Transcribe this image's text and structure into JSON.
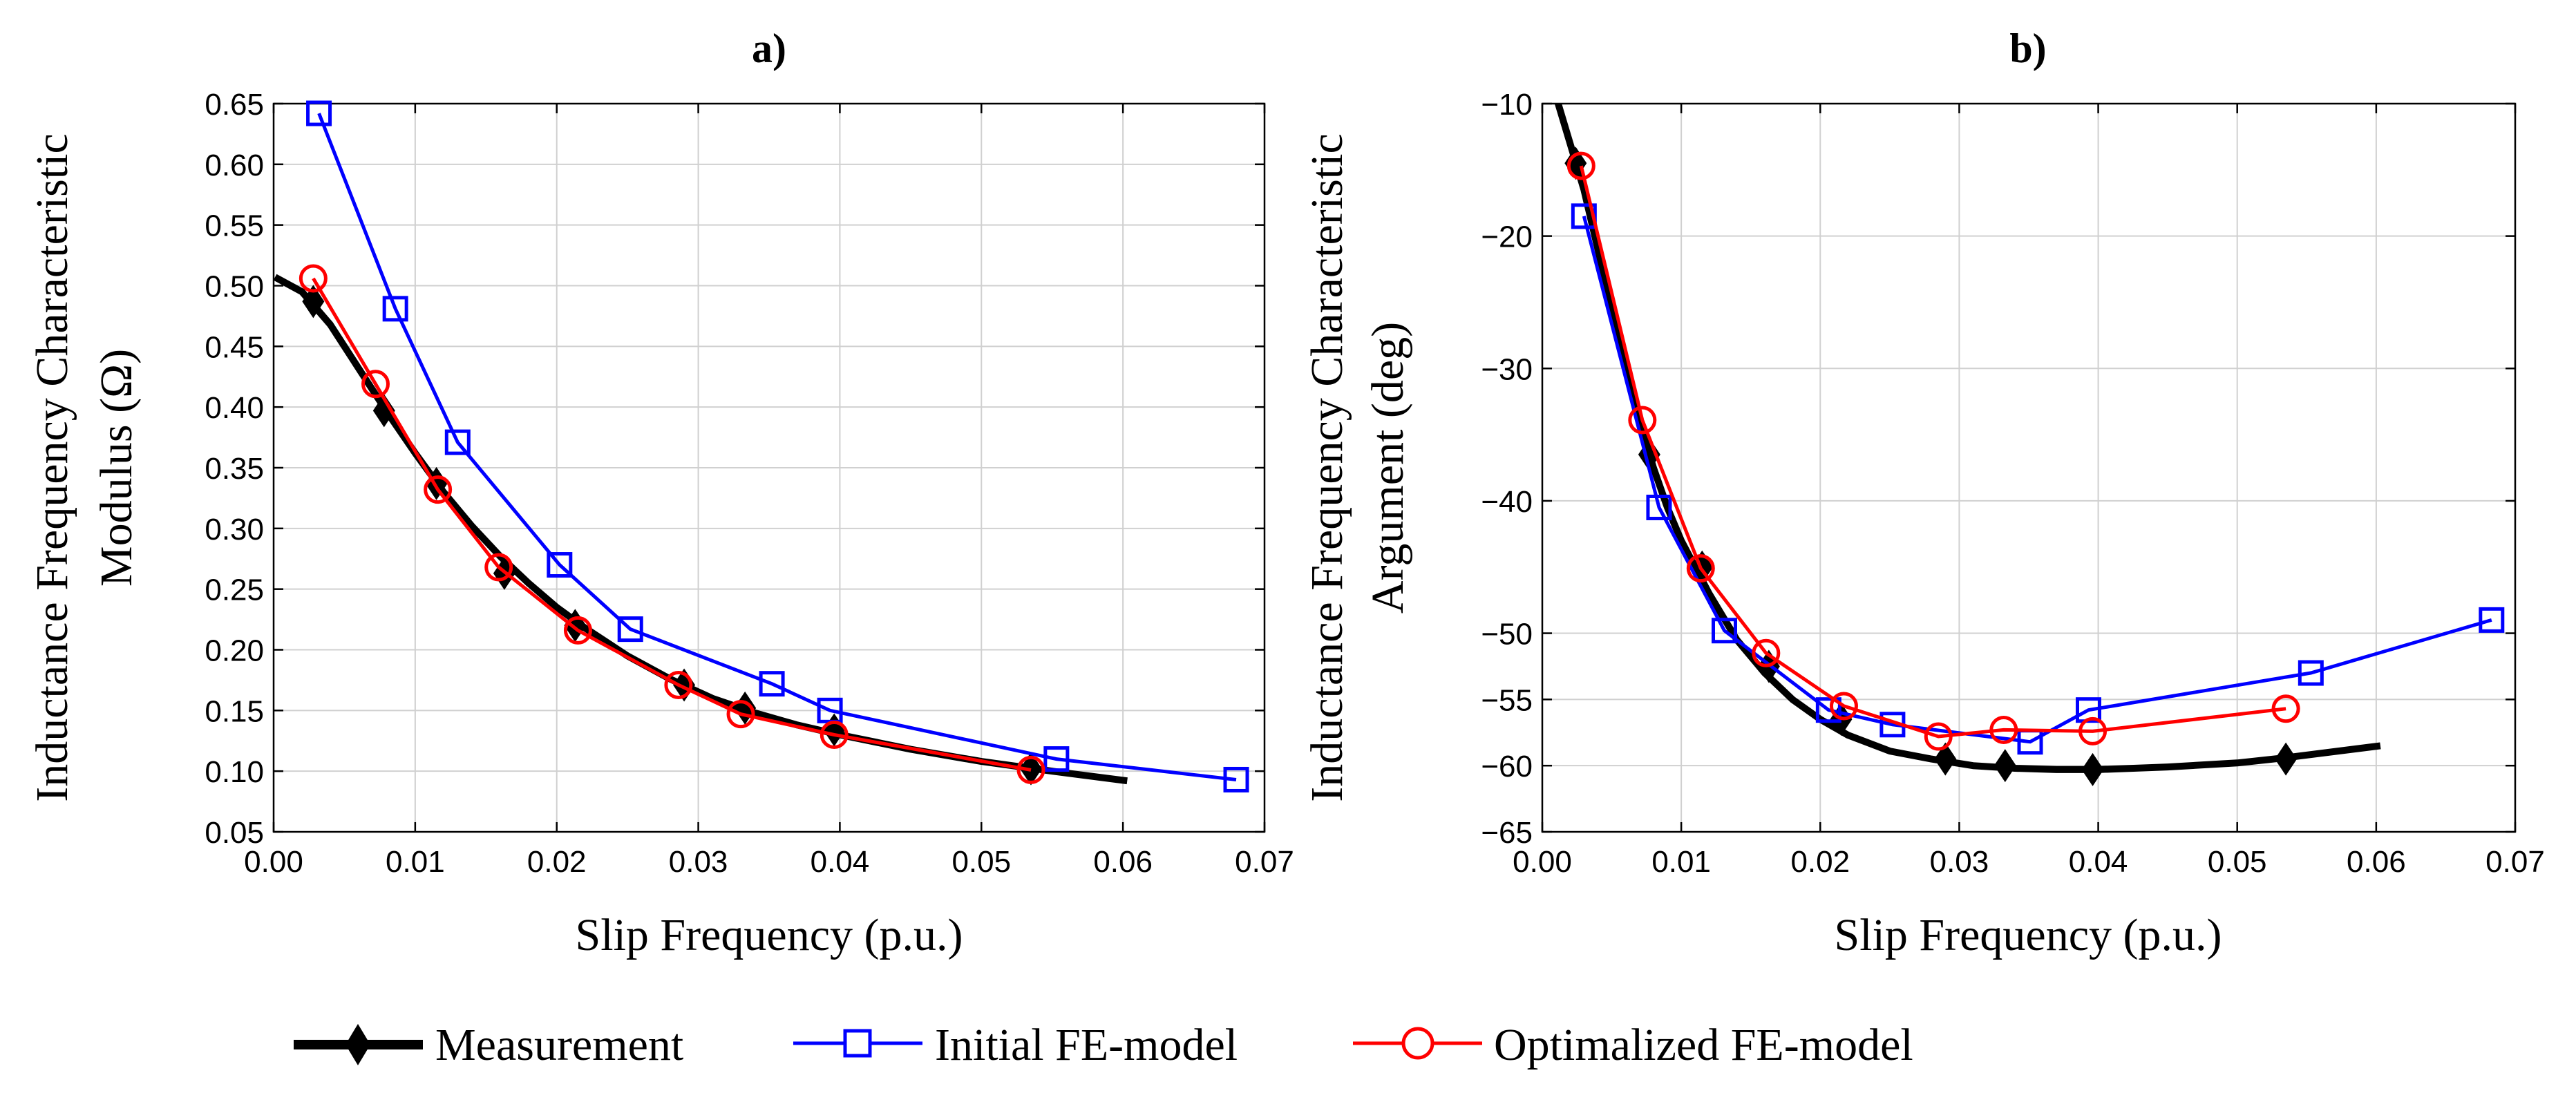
{
  "chart_data": [
    {
      "panel": "a)",
      "type": "line",
      "title": "a)",
      "xlabel": "Slip Frequency (p.u.)",
      "ylabel_line1": "Inductance Frequency Characteristic",
      "ylabel_line2": "Modulus (Ω)",
      "xlim": [
        0,
        0.07
      ],
      "ylim": [
        0.05,
        0.65
      ],
      "xticks": [
        "0.00",
        "0.01",
        "0.02",
        "0.03",
        "0.04",
        "0.05",
        "0.06",
        "0.07"
      ],
      "yticks": [
        "0.05",
        "0.10",
        "0.15",
        "0.20",
        "0.25",
        "0.30",
        "0.35",
        "0.40",
        "0.45",
        "0.50",
        "0.55",
        "0.60",
        "0.65"
      ],
      "xtick_values": [
        0,
        0.01,
        0.02,
        0.03,
        0.04,
        0.05,
        0.06,
        0.07
      ],
      "ytick_values": [
        0.05,
        0.1,
        0.15,
        0.2,
        0.25,
        0.3,
        0.35,
        0.4,
        0.45,
        0.5,
        0.55,
        0.6,
        0.65
      ],
      "grid": true,
      "series": [
        {
          "name": "Measurement",
          "curve_x": [
            0.0001,
            0.002,
            0.004,
            0.006,
            0.008,
            0.01,
            0.012,
            0.014,
            0.016,
            0.018,
            0.02,
            0.022,
            0.025,
            0.028,
            0.031,
            0.034,
            0.037,
            0.04,
            0.045,
            0.05,
            0.055,
            0.0603
          ],
          "curve_y": [
            0.507,
            0.495,
            0.468,
            0.432,
            0.396,
            0.362,
            0.33,
            0.302,
            0.277,
            0.255,
            0.235,
            0.218,
            0.195,
            0.176,
            0.16,
            0.148,
            0.138,
            0.13,
            0.118,
            0.108,
            0.1,
            0.092
          ],
          "marker_x": [
            0.0028,
            0.0078,
            0.0115,
            0.0163,
            0.0213,
            0.029,
            0.0333,
            0.0396,
            0.0535
          ],
          "marker_y": [
            0.487,
            0.397,
            0.337,
            0.263,
            0.22,
            0.171,
            0.152,
            0.134,
            0.102
          ]
        },
        {
          "name": "Initial FE-model",
          "x": [
            0.0032,
            0.0086,
            0.013,
            0.0202,
            0.0252,
            0.0352,
            0.0393,
            0.0553,
            0.068
          ],
          "y": [
            0.642,
            0.481,
            0.371,
            0.27,
            0.217,
            0.172,
            0.15,
            0.11,
            0.093
          ]
        },
        {
          "name": "Optimalized FE-model",
          "x": [
            0.0028,
            0.0072,
            0.0116,
            0.0159,
            0.0215,
            0.0286,
            0.033,
            0.0396,
            0.0535
          ],
          "y": [
            0.506,
            0.419,
            0.332,
            0.268,
            0.216,
            0.171,
            0.147,
            0.13,
            0.101
          ]
        }
      ]
    },
    {
      "panel": "b)",
      "type": "line",
      "title": "b)",
      "xlabel": "Slip Frequency (p.u.)",
      "ylabel_line1": "Inductance Frequency Characteristic",
      "ylabel_line2": "Argument (deg)",
      "xlim": [
        0,
        0.07
      ],
      "ylim": [
        -65,
        -10
      ],
      "xticks": [
        "0.00",
        "0.01",
        "0.02",
        "0.03",
        "0.04",
        "0.05",
        "0.06",
        "0.07"
      ],
      "yticks": [
        "−10",
        "−20",
        "−30",
        "−40",
        "−50",
        "−55",
        "−60",
        "−65"
      ],
      "xtick_values": [
        0,
        0.01,
        0.02,
        0.03,
        0.04,
        0.05,
        0.06,
        0.07
      ],
      "ytick_values": [
        -10,
        -20,
        -30,
        -40,
        -50,
        -55,
        -60,
        -65
      ],
      "grid": true,
      "series": [
        {
          "name": "Measurement",
          "curve_x": [
            0.001,
            0.002,
            0.003,
            0.004,
            0.005,
            0.006,
            0.007,
            0.008,
            0.009,
            0.01,
            0.011,
            0.012,
            0.014,
            0.016,
            0.018,
            0.02,
            0.022,
            0.025,
            0.028,
            0.031,
            0.034,
            0.037,
            0.04,
            0.045,
            0.05,
            0.0535,
            0.0603
          ],
          "curve_y": [
            -9.5,
            -13.0,
            -16.5,
            -21.0,
            -25.5,
            -30.0,
            -34.0,
            -37.5,
            -40.5,
            -43.0,
            -45.0,
            -47.0,
            -50.5,
            -53.0,
            -55.0,
            -56.5,
            -57.7,
            -58.9,
            -59.5,
            -60.0,
            -60.2,
            -60.3,
            -60.3,
            -60.1,
            -59.8,
            -59.4,
            -58.5
          ],
          "marker_x": [
            0.0024,
            0.0077,
            0.0115,
            0.0163,
            0.0215,
            0.029,
            0.0333,
            0.0396,
            0.0535
          ],
          "marker_y": [
            -14.5,
            -36.5,
            -45.0,
            -52.5,
            -56.5,
            -59.5,
            -60.0,
            -60.3,
            -59.5
          ]
        },
        {
          "name": "Initial FE-model",
          "x": [
            0.003,
            0.0084,
            0.0131,
            0.0206,
            0.0252,
            0.0351,
            0.0393,
            0.0553,
            0.0683
          ],
          "y": [
            -18.5,
            -40.5,
            -49.8,
            -55.8,
            -56.9,
            -58.2,
            -55.8,
            -53.0,
            -49.0
          ]
        },
        {
          "name": "Optimalized FE-model",
          "x": [
            0.0028,
            0.0072,
            0.0114,
            0.0161,
            0.0217,
            0.0285,
            0.0332,
            0.0396,
            0.0535
          ],
          "y": [
            -14.7,
            -33.9,
            -45.1,
            -51.5,
            -55.5,
            -57.8,
            -57.3,
            -57.4,
            -55.7
          ]
        }
      ]
    }
  ],
  "legend": {
    "items": [
      "Measurement",
      "Initial FE-model",
      "Optimalized FE-model"
    ],
    "placement": "bottom-center"
  },
  "colors": {
    "measurement": "#000000",
    "initial": "#0000ff",
    "optimalized": "#ff0000"
  }
}
